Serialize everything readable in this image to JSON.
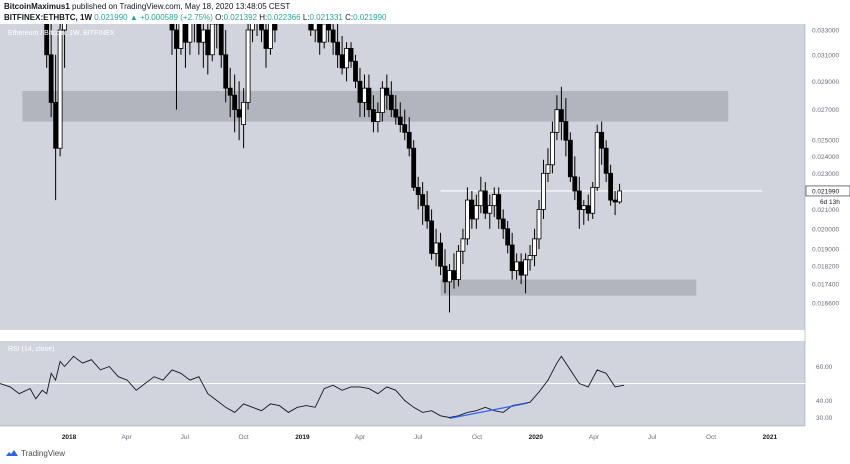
{
  "header": {
    "author": "BitcoinMaximus1",
    "published_text": "published on TradingView.com, May 18, 2020 13:48:05 CEST",
    "symbol_timeframe": "BITFINEX:ETHBTC, 1W",
    "change": "0.021990 ▲ +0.000589 (+2.75%)",
    "o_label": "O:",
    "o_value": "0.021392",
    "h_label": "H:",
    "h_value": "0.022366",
    "l_label": "L:",
    "l_value": "0.021331",
    "c_label": "C:",
    "c_value": "0.021990"
  },
  "footer": {
    "brand": "TradingView",
    "logo_icon": "tradingview-logo-icon"
  },
  "colors": {
    "background": "#d1d4dc",
    "candle_body": "#000000",
    "zone": "#b2b5be",
    "level_line": "#ffffff",
    "trendline": "#2962ff",
    "price_tag_bg": "#ffffff"
  },
  "chart_data": [
    {
      "type": "candlestick",
      "title": "Ethereum / Bitcoin, 1W, BITFINEX",
      "y_scale": "log",
      "ylim": [
        0.0155,
        0.0335
      ],
      "y_ticks": [
        "0.033000",
        "0.031000",
        "0.029000",
        "0.027000",
        "0.025000",
        "0.024000",
        "0.023000",
        "0.021000",
        "0.020000",
        "0.019000",
        "0.018200",
        "0.017400",
        "0.016600"
      ],
      "y_tick_values": [
        0.033,
        0.031,
        0.029,
        0.027,
        0.025,
        0.024,
        0.023,
        0.021,
        0.02,
        0.019,
        0.0182,
        0.0174,
        0.0166
      ],
      "x_ticks": [
        "2018",
        "Apr",
        "Jul",
        "Oct",
        "2019",
        "Apr",
        "Jul",
        "Oct",
        "2020",
        "Apr",
        "Jul",
        "Oct",
        "2021"
      ],
      "x_tick_dates": [
        "2018-01-01",
        "2018-04-01",
        "2018-07-01",
        "2018-10-01",
        "2019-01-01",
        "2019-04-01",
        "2019-07-01",
        "2019-10-01",
        "2020-01-01",
        "2020-04-01",
        "2020-07-01",
        "2020-10-01",
        "2021-01-01"
      ],
      "x_range": [
        "2017-09-15",
        "2021-02-25"
      ],
      "last_price_label": "0.021990",
      "countdown_label": "6d 13h",
      "resistance_zone": [
        0.0262,
        0.0283
      ],
      "support_zone": [
        0.0169,
        0.0176
      ],
      "horizontal_level": 0.022,
      "horizontal_level_range": [
        "2019-08-05",
        "2020-12-20"
      ],
      "candles": [
        [
          "2017-11-27",
          0.0355,
          0.04,
          0.03,
          0.031
        ],
        [
          "2017-12-04",
          0.031,
          0.0335,
          0.0265,
          0.0275
        ],
        [
          "2017-12-11",
          0.0275,
          0.031,
          0.0215,
          0.0245
        ],
        [
          "2017-12-18",
          0.0245,
          0.036,
          0.024,
          0.033
        ],
        [
          "2017-12-25",
          0.033,
          0.037,
          0.03,
          0.0355
        ],
        [
          "2018-06-11",
          0.0375,
          0.038,
          0.031,
          0.033
        ],
        [
          "2018-06-18",
          0.033,
          0.0345,
          0.027,
          0.0315
        ],
        [
          "2018-06-25",
          0.0315,
          0.037,
          0.031,
          0.035
        ],
        [
          "2018-07-02",
          0.035,
          0.0365,
          0.03,
          0.032
        ],
        [
          "2018-07-09",
          0.032,
          0.036,
          0.031,
          0.0345
        ],
        [
          "2018-07-16",
          0.0345,
          0.037,
          0.032,
          0.035
        ],
        [
          "2018-07-23",
          0.035,
          0.036,
          0.031,
          0.032
        ],
        [
          "2018-07-30",
          0.032,
          0.034,
          0.03,
          0.033
        ],
        [
          "2018-08-06",
          0.033,
          0.0345,
          0.0295,
          0.031
        ],
        [
          "2018-08-13",
          0.031,
          0.0345,
          0.0305,
          0.0335
        ],
        [
          "2018-08-20",
          0.0335,
          0.036,
          0.0315,
          0.0345
        ],
        [
          "2018-08-27",
          0.0345,
          0.0355,
          0.03,
          0.031
        ],
        [
          "2018-09-03",
          0.031,
          0.033,
          0.0275,
          0.0285
        ],
        [
          "2018-09-10",
          0.0285,
          0.03,
          0.0265,
          0.028
        ],
        [
          "2018-09-17",
          0.028,
          0.0295,
          0.0255,
          0.027
        ],
        [
          "2018-09-24",
          0.027,
          0.029,
          0.025,
          0.0265
        ],
        [
          "2018-10-01",
          0.026,
          0.0285,
          0.0245,
          0.0275
        ],
        [
          "2018-10-08",
          0.0275,
          0.0345,
          0.027,
          0.033
        ],
        [
          "2018-10-15",
          0.033,
          0.038,
          0.032,
          0.034
        ],
        [
          "2018-10-22",
          0.034,
          0.038,
          0.0325,
          0.035
        ],
        [
          "2018-10-29",
          0.035,
          0.037,
          0.032,
          0.033
        ],
        [
          "2018-11-05",
          0.033,
          0.0345,
          0.03,
          0.0315
        ],
        [
          "2018-11-12",
          0.0315,
          0.036,
          0.031,
          0.034
        ],
        [
          "2018-11-19",
          0.034,
          0.0355,
          0.032,
          0.033
        ],
        [
          "2019-01-14",
          0.035,
          0.0365,
          0.0325,
          0.033
        ],
        [
          "2019-01-21",
          0.033,
          0.035,
          0.032,
          0.034
        ],
        [
          "2019-01-28",
          0.034,
          0.0345,
          0.031,
          0.032
        ],
        [
          "2019-02-04",
          0.032,
          0.0345,
          0.0315,
          0.0335
        ],
        [
          "2019-02-11",
          0.0335,
          0.0345,
          0.032,
          0.033
        ],
        [
          "2019-02-18",
          0.033,
          0.034,
          0.031,
          0.032
        ],
        [
          "2019-02-25",
          0.032,
          0.0335,
          0.03,
          0.031
        ],
        [
          "2019-03-04",
          0.031,
          0.0325,
          0.0295,
          0.03
        ],
        [
          "2019-03-11",
          0.03,
          0.032,
          0.029,
          0.0315
        ],
        [
          "2019-03-18",
          0.0315,
          0.032,
          0.03,
          0.0305
        ],
        [
          "2019-03-25",
          0.0305,
          0.031,
          0.0285,
          0.029
        ],
        [
          "2019-04-01",
          0.029,
          0.03,
          0.0265,
          0.0275
        ],
        [
          "2019-04-08",
          0.0275,
          0.0295,
          0.0265,
          0.0285
        ],
        [
          "2019-04-15",
          0.0285,
          0.0295,
          0.0265,
          0.027
        ],
        [
          "2019-04-22",
          0.027,
          0.028,
          0.0255,
          0.0262
        ],
        [
          "2019-04-29",
          0.0262,
          0.0275,
          0.0255,
          0.0268
        ],
        [
          "2019-05-06",
          0.0268,
          0.029,
          0.0262,
          0.0285
        ],
        [
          "2019-05-13",
          0.0285,
          0.0295,
          0.027,
          0.028
        ],
        [
          "2019-05-20",
          0.028,
          0.029,
          0.0265,
          0.027
        ],
        [
          "2019-05-27",
          0.027,
          0.028,
          0.026,
          0.0265
        ],
        [
          "2019-06-03",
          0.0265,
          0.0275,
          0.0255,
          0.026
        ],
        [
          "2019-06-10",
          0.026,
          0.027,
          0.025,
          0.0255
        ],
        [
          "2019-06-17",
          0.0255,
          0.0265,
          0.024,
          0.0245
        ],
        [
          "2019-06-24",
          0.0245,
          0.025,
          0.022,
          0.0222
        ],
        [
          "2019-07-01",
          0.0222,
          0.0228,
          0.021,
          0.0218
        ],
        [
          "2019-07-08",
          0.0218,
          0.0225,
          0.0202,
          0.0212
        ],
        [
          "2019-07-15",
          0.0212,
          0.022,
          0.02,
          0.0204
        ],
        [
          "2019-07-22",
          0.0204,
          0.021,
          0.0185,
          0.0188
        ],
        [
          "2019-07-29",
          0.0188,
          0.02,
          0.0182,
          0.0193
        ],
        [
          "2019-08-05",
          0.0193,
          0.0198,
          0.0178,
          0.0182
        ],
        [
          "2019-08-12",
          0.0182,
          0.019,
          0.017,
          0.0175
        ],
        [
          "2019-08-19",
          0.0175,
          0.0183,
          0.0162,
          0.018
        ],
        [
          "2019-08-26",
          0.018,
          0.0188,
          0.0172,
          0.0176
        ],
        [
          "2019-09-02",
          0.0176,
          0.0192,
          0.0173,
          0.0189
        ],
        [
          "2019-09-09",
          0.0189,
          0.02,
          0.0183,
          0.0195
        ],
        [
          "2019-09-16",
          0.0195,
          0.0222,
          0.0192,
          0.0215
        ],
        [
          "2019-09-23",
          0.0215,
          0.022,
          0.02,
          0.0205
        ],
        [
          "2019-09-30",
          0.0205,
          0.0218,
          0.02,
          0.0212
        ],
        [
          "2019-10-07",
          0.0212,
          0.0228,
          0.0208,
          0.022
        ],
        [
          "2019-10-14",
          0.022,
          0.0225,
          0.0205,
          0.0208
        ],
        [
          "2019-10-21",
          0.0208,
          0.0218,
          0.02,
          0.0212
        ],
        [
          "2019-10-28",
          0.0212,
          0.0222,
          0.0206,
          0.0218
        ],
        [
          "2019-11-04",
          0.0218,
          0.0222,
          0.02,
          0.0205
        ],
        [
          "2019-11-11",
          0.0205,
          0.021,
          0.0195,
          0.02
        ],
        [
          "2019-11-18",
          0.02,
          0.0204,
          0.0188,
          0.0192
        ],
        [
          "2019-11-25",
          0.0192,
          0.0198,
          0.0176,
          0.018
        ],
        [
          "2019-12-02",
          0.018,
          0.0188,
          0.0176,
          0.0184
        ],
        [
          "2019-12-09",
          0.0184,
          0.0188,
          0.0174,
          0.0178
        ],
        [
          "2019-12-16",
          0.0178,
          0.0188,
          0.017,
          0.0185
        ],
        [
          "2019-12-23",
          0.0185,
          0.0192,
          0.018,
          0.0187
        ],
        [
          "2019-12-30",
          0.0187,
          0.02,
          0.0182,
          0.0195
        ],
        [
          "2020-01-06",
          0.0195,
          0.0215,
          0.019,
          0.021
        ],
        [
          "2020-01-13",
          0.021,
          0.0238,
          0.0205,
          0.023
        ],
        [
          "2020-01-20",
          0.023,
          0.0245,
          0.0225,
          0.0235
        ],
        [
          "2020-01-27",
          0.0235,
          0.0262,
          0.023,
          0.0255
        ],
        [
          "2020-02-03",
          0.0255,
          0.028,
          0.025,
          0.027
        ],
        [
          "2020-02-10",
          0.027,
          0.0286,
          0.025,
          0.0262
        ],
        [
          "2020-02-17",
          0.0262,
          0.0278,
          0.024,
          0.025
        ],
        [
          "2020-02-24",
          0.025,
          0.0255,
          0.0225,
          0.0228
        ],
        [
          "2020-03-02",
          0.0228,
          0.024,
          0.0215,
          0.022
        ],
        [
          "2020-03-09",
          0.022,
          0.0228,
          0.02,
          0.021
        ],
        [
          "2020-03-16",
          0.021,
          0.0215,
          0.0202,
          0.0212
        ],
        [
          "2020-03-23",
          0.0212,
          0.0218,
          0.0204,
          0.0208
        ],
        [
          "2020-03-30",
          0.0208,
          0.0225,
          0.0205,
          0.0222
        ],
        [
          "2020-04-06",
          0.0222,
          0.026,
          0.022,
          0.0255
        ],
        [
          "2020-04-13",
          0.0255,
          0.0262,
          0.0235,
          0.0245
        ],
        [
          "2020-04-20",
          0.0245,
          0.025,
          0.0225,
          0.023
        ],
        [
          "2020-04-27",
          0.023,
          0.0235,
          0.0212,
          0.0215
        ],
        [
          "2020-05-04",
          0.0215,
          0.022,
          0.0207,
          0.0214
        ],
        [
          "2020-05-11",
          0.0214,
          0.0224,
          0.0213,
          0.022
        ]
      ]
    },
    {
      "type": "line",
      "title": "RSI (14, close)",
      "ylim": [
        25,
        75
      ],
      "y_ticks": [
        "60.00",
        "40.00",
        "30.00"
      ],
      "y_tick_values": [
        60,
        40,
        30
      ],
      "horizontal_level": 50,
      "trendline": [
        [
          "2019-08-19",
          29.5
        ],
        [
          "2019-12-20",
          38.5
        ]
      ],
      "points": [
        [
          "2017-09-15",
          50
        ],
        [
          "2017-10-01",
          48
        ],
        [
          "2017-10-15",
          44
        ],
        [
          "2017-11-01",
          47
        ],
        [
          "2017-11-10",
          41
        ],
        [
          "2017-11-20",
          46
        ],
        [
          "2017-11-27",
          44
        ],
        [
          "2017-12-04",
          56
        ],
        [
          "2017-12-11",
          52
        ],
        [
          "2017-12-18",
          63
        ],
        [
          "2017-12-25",
          60
        ],
        [
          "2018-01-08",
          66
        ],
        [
          "2018-01-22",
          62
        ],
        [
          "2018-02-05",
          64
        ],
        [
          "2018-02-19",
          58
        ],
        [
          "2018-03-05",
          60
        ],
        [
          "2018-03-19",
          54
        ],
        [
          "2018-04-02",
          52
        ],
        [
          "2018-04-16",
          46
        ],
        [
          "2018-04-30",
          50
        ],
        [
          "2018-05-14",
          54
        ],
        [
          "2018-05-28",
          52
        ],
        [
          "2018-06-11",
          58
        ],
        [
          "2018-06-25",
          56
        ],
        [
          "2018-07-09",
          52
        ],
        [
          "2018-07-23",
          54
        ],
        [
          "2018-08-06",
          44
        ],
        [
          "2018-08-20",
          40
        ],
        [
          "2018-09-03",
          36
        ],
        [
          "2018-09-17",
          33
        ],
        [
          "2018-10-01",
          38
        ],
        [
          "2018-10-15",
          36
        ],
        [
          "2018-10-29",
          34
        ],
        [
          "2018-11-12",
          38
        ],
        [
          "2018-11-26",
          37
        ],
        [
          "2018-12-10",
          33
        ],
        [
          "2018-12-24",
          36
        ],
        [
          "2019-01-07",
          37
        ],
        [
          "2019-01-21",
          36
        ],
        [
          "2019-02-04",
          47
        ],
        [
          "2019-02-18",
          49
        ],
        [
          "2019-03-04",
          46
        ],
        [
          "2019-03-18",
          48
        ],
        [
          "2019-04-01",
          48
        ],
        [
          "2019-04-15",
          47
        ],
        [
          "2019-04-29",
          44
        ],
        [
          "2019-05-13",
          48
        ],
        [
          "2019-05-27",
          46
        ],
        [
          "2019-06-10",
          40
        ],
        [
          "2019-06-24",
          36
        ],
        [
          "2019-07-08",
          33
        ],
        [
          "2019-07-22",
          34
        ],
        [
          "2019-08-05",
          31
        ],
        [
          "2019-08-19",
          30
        ],
        [
          "2019-09-02",
          31
        ],
        [
          "2019-09-16",
          33
        ],
        [
          "2019-09-30",
          34
        ],
        [
          "2019-10-14",
          36
        ],
        [
          "2019-10-28",
          34
        ],
        [
          "2019-11-11",
          33
        ],
        [
          "2019-11-25",
          37
        ],
        [
          "2019-12-09",
          38
        ],
        [
          "2019-12-23",
          39
        ],
        [
          "2020-01-06",
          45
        ],
        [
          "2020-01-20",
          52
        ],
        [
          "2020-02-03",
          62
        ],
        [
          "2020-02-10",
          66
        ],
        [
          "2020-02-24",
          58
        ],
        [
          "2020-03-09",
          50
        ],
        [
          "2020-03-23",
          48
        ],
        [
          "2020-04-06",
          58
        ],
        [
          "2020-04-20",
          56
        ],
        [
          "2020-05-04",
          48
        ],
        [
          "2020-05-18",
          49
        ]
      ]
    }
  ]
}
